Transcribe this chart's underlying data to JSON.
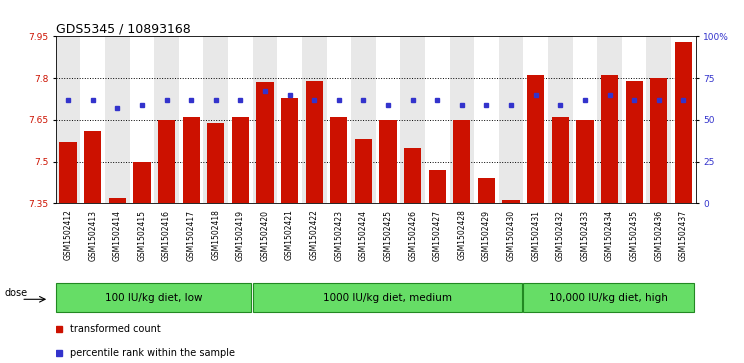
{
  "title": "GDS5345 / 10893168",
  "samples": [
    "GSM1502412",
    "GSM1502413",
    "GSM1502414",
    "GSM1502415",
    "GSM1502416",
    "GSM1502417",
    "GSM1502418",
    "GSM1502419",
    "GSM1502420",
    "GSM1502421",
    "GSM1502422",
    "GSM1502423",
    "GSM1502424",
    "GSM1502425",
    "GSM1502426",
    "GSM1502427",
    "GSM1502428",
    "GSM1502429",
    "GSM1502430",
    "GSM1502431",
    "GSM1502432",
    "GSM1502433",
    "GSM1502434",
    "GSM1502435",
    "GSM1502436",
    "GSM1502437"
  ],
  "bar_values": [
    7.57,
    7.61,
    7.37,
    7.5,
    7.65,
    7.66,
    7.64,
    7.66,
    7.785,
    7.73,
    7.79,
    7.66,
    7.58,
    7.65,
    7.55,
    7.47,
    7.65,
    7.44,
    7.36,
    7.81,
    7.66,
    7.65,
    7.81,
    7.79,
    7.8,
    7.93
  ],
  "percentile_values": [
    62,
    62,
    57,
    59,
    62,
    62,
    62,
    62,
    67,
    65,
    62,
    62,
    62,
    59,
    62,
    62,
    59,
    59,
    59,
    65,
    59,
    62,
    65,
    62,
    62,
    62
  ],
  "bar_color": "#cc1100",
  "percentile_color": "#3333cc",
  "ymin": 7.35,
  "ymax": 7.95,
  "yticks": [
    7.35,
    7.5,
    7.65,
    7.8,
    7.95
  ],
  "ytick_labels": [
    "7.35",
    "7.5",
    "7.65",
    "7.8",
    "7.95"
  ],
  "right_yticks": [
    0,
    25,
    50,
    75,
    100
  ],
  "right_ytick_labels": [
    "0",
    "25",
    "50",
    "75",
    "100%"
  ],
  "dotted_lines": [
    7.5,
    7.65,
    7.8
  ],
  "group_labels": [
    "100 IU/kg diet, low",
    "1000 IU/kg diet, medium",
    "10,000 IU/kg diet, high"
  ],
  "group_ranges": [
    [
      0,
      8
    ],
    [
      8,
      19
    ],
    [
      19,
      26
    ]
  ],
  "group_color_light": "#aaeaaa",
  "group_color_mid": "#55dd55",
  "group_color_dark": "#22bb22",
  "group_border_color": "#228822",
  "dose_label": "dose",
  "legend_items": [
    {
      "label": "transformed count",
      "color": "#cc1100"
    },
    {
      "label": "percentile rank within the sample",
      "color": "#3333cc"
    }
  ],
  "plot_bg_color": "#ffffff",
  "col_bg_even": "#e8e8e8",
  "col_bg_odd": "#ffffff",
  "title_fontsize": 9,
  "tick_fontsize": 6.5,
  "xtick_fontsize": 5.5,
  "group_fontsize": 7.5,
  "legend_fontsize": 7
}
